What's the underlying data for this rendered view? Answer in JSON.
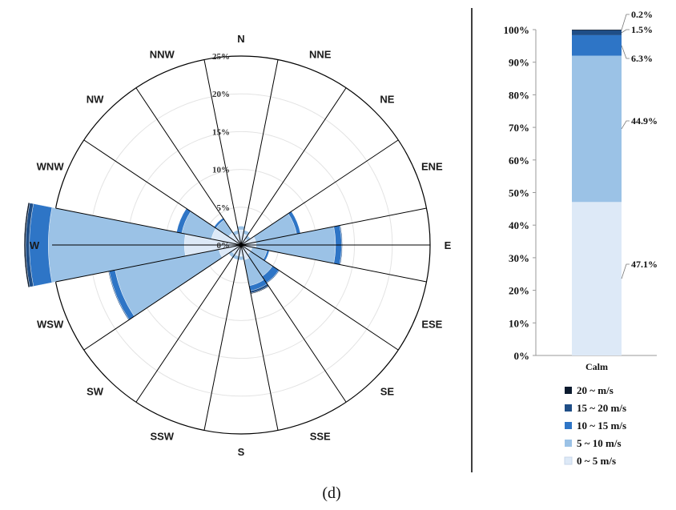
{
  "chart_data": [
    {
      "type": "wind-rose",
      "directions": [
        "N",
        "NNE",
        "NE",
        "ENE",
        "E",
        "ESE",
        "SE",
        "SSE",
        "S",
        "SSW",
        "SW",
        "WSW",
        "W",
        "WNW",
        "NW",
        "NNW"
      ],
      "radial_ticks": [
        "0%",
        "5%",
        "10%",
        "15%",
        "20%",
        "25%"
      ],
      "rmax": 25,
      "series": [
        {
          "name": "0 ~ 5 m/s",
          "color": "#dde9f7",
          "values": [
            2,
            1.5,
            1,
            2,
            2,
            1.5,
            1.5,
            2,
            1.5,
            1.5,
            1.5,
            3,
            7.5,
            4,
            2,
            1.5
          ]
        },
        {
          "name": "5 ~ 10 m/s",
          "color": "#9bc2e6",
          "values": [
            0.5,
            0.5,
            0.5,
            5.5,
            10.5,
            2,
            3.5,
            3.5,
            0.5,
            0.5,
            0.5,
            14,
            18,
            4,
            2,
            0.5
          ]
        },
        {
          "name": "10 ~ 15 m/s",
          "color": "#2e75c6",
          "values": [
            0,
            0,
            0,
            0.5,
            0.8,
            0.3,
            1,
            0.7,
            0,
            0,
            0,
            0.8,
            2.5,
            0.7,
            0.3,
            0
          ]
        },
        {
          "name": "15 ~ 20 m/s",
          "color": "#1f4e87",
          "values": [
            0,
            0,
            0,
            0,
            0.1,
            0,
            0.1,
            0.3,
            0,
            0,
            0,
            0.1,
            0.5,
            0,
            0,
            0
          ]
        },
        {
          "name": "20 ~ m/s",
          "color": "#0b1a2e",
          "values": [
            0,
            0,
            0,
            0,
            0,
            0,
            0,
            0.1,
            0,
            0,
            0,
            0,
            0.2,
            0,
            0,
            0
          ]
        }
      ]
    },
    {
      "type": "bar",
      "stacked": true,
      "categories": [
        "Calm"
      ],
      "ylim": [
        0,
        100
      ],
      "y_ticks": [
        "0%",
        "10%",
        "20%",
        "30%",
        "40%",
        "50%",
        "60%",
        "70%",
        "80%",
        "90%",
        "100%"
      ],
      "series": [
        {
          "name": "0 ~ 5 m/s",
          "color": "#dde9f7",
          "values": [
            47.1
          ],
          "label": "47.1%"
        },
        {
          "name": "5 ~ 10 m/s",
          "color": "#9bc2e6",
          "values": [
            44.9
          ],
          "label": "44.9%"
        },
        {
          "name": "10 ~ 15 m/s",
          "color": "#2e75c6",
          "values": [
            6.3
          ],
          "label": "6.3%"
        },
        {
          "name": "15 ~ 20 m/s",
          "color": "#1f4e87",
          "values": [
            1.5
          ],
          "label": "1.5%"
        },
        {
          "name": "20 ~ m/s",
          "color": "#0b1a2e",
          "values": [
            0.2
          ],
          "label": "0.2%"
        }
      ]
    }
  ],
  "legend": {
    "items": [
      {
        "label": "20 ~ m/s",
        "color": "#0b1a2e"
      },
      {
        "label": "15 ~ 20 m/s",
        "color": "#1f4e87"
      },
      {
        "label": "10 ~ 15 m/s",
        "color": "#2e75c6"
      },
      {
        "label": "5 ~ 10 m/s",
        "color": "#9bc2e6"
      },
      {
        "label": "0 ~ 5 m/s",
        "color": "#dde9f7"
      }
    ]
  },
  "caption": "(d)"
}
